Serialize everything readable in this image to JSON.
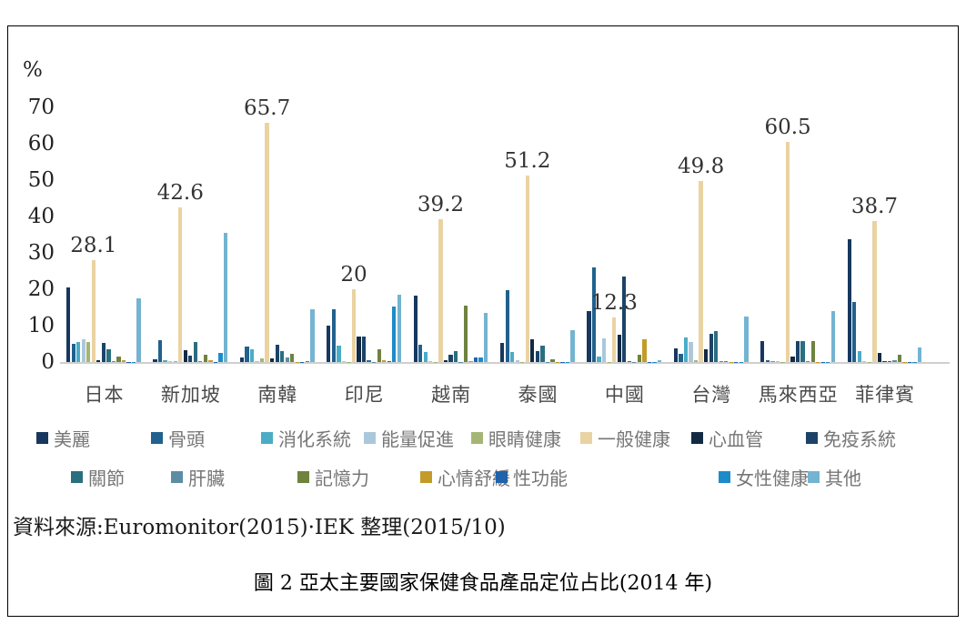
{
  "figure": {
    "source_note": "資料來源:Euromonitor(2015)·IEK 整理(2015/10)",
    "caption": "圖 2 亞太主要國家保健食品產品定位占比(2014 年)"
  },
  "chart_data": {
    "type": "bar",
    "title": "",
    "unit_label": "%",
    "ylabel": "%",
    "xlabel": "",
    "ylim": [
      0,
      70
    ],
    "y_ticks": [
      0,
      10,
      20,
      30,
      40,
      50,
      60,
      70
    ],
    "grid": false,
    "legend_position": "bottom",
    "categories": [
      "日本",
      "新加坡",
      "南韓",
      "印尼",
      "越南",
      "泰國",
      "中國",
      "台灣",
      "馬來西亞",
      "菲律賓"
    ],
    "series": [
      {
        "name": "美麗",
        "color": "#17375E",
        "values": [
          20.5,
          0.8,
          1.2,
          10.0,
          18.3,
          5.2,
          14.0,
          3.8,
          5.8,
          33.8
        ]
      },
      {
        "name": "骨頭",
        "color": "#21618E",
        "values": [
          5.0,
          6.0,
          4.3,
          14.5,
          4.7,
          19.8,
          26.0,
          2.2,
          0.4,
          16.5
        ]
      },
      {
        "name": "消化系統",
        "color": "#4BACC6",
        "values": [
          5.5,
          0.4,
          3.4,
          4.5,
          2.8,
          2.7,
          1.5,
          6.8,
          0.3,
          3.0
        ]
      },
      {
        "name": "能量促進",
        "color": "#ABC8DB",
        "values": [
          6.2,
          0.2,
          0.3,
          0.3,
          0.2,
          0.4,
          6.4,
          5.5,
          0.2,
          0.2
        ]
      },
      {
        "name": "眼睛健康",
        "color": "#A5B575",
        "values": [
          5.6,
          0.3,
          0.9,
          0.1,
          0.1,
          0.1,
          0.1,
          0.4,
          0.1,
          0.1
        ]
      },
      {
        "name": "一般健康",
        "color": "#EAD3A2",
        "values": [
          28.1,
          42.6,
          65.7,
          20,
          39.2,
          51.2,
          12.3,
          49.8,
          60.5,
          38.7
        ]
      },
      {
        "name": "心血管",
        "color": "#122A42",
        "values": [
          0.4,
          3.2,
          1.1,
          7.0,
          0.6,
          6.2,
          7.4,
          3.5,
          1.6,
          2.4
        ]
      },
      {
        "name": "免疫系統",
        "color": "#1C4367",
        "values": [
          5.2,
          1.8,
          4.8,
          7.0,
          1.9,
          3.0,
          23.5,
          7.7,
          5.8,
          0.3
        ]
      },
      {
        "name": "關節",
        "color": "#2A6F80",
        "values": [
          3.6,
          5.6,
          3.0,
          0.4,
          3.1,
          4.4,
          0.2,
          8.5,
          5.8,
          0.2
        ]
      },
      {
        "name": "肝臟",
        "color": "#5D8DA5",
        "values": [
          0.2,
          0.3,
          1.2,
          0.1,
          0.1,
          0.1,
          0.1,
          0.3,
          0.2,
          0.4
        ]
      },
      {
        "name": "記憶力",
        "color": "#6F8240",
        "values": [
          1.6,
          2.0,
          2.3,
          3.6,
          15.5,
          0.8,
          2.0,
          0.2,
          5.8,
          2.0
        ]
      },
      {
        "name": "心情舒緩",
        "color": "#C39B28",
        "values": [
          0.6,
          0.4,
          0.1,
          0.4,
          0.3,
          0.1,
          6.2,
          0.1,
          0.1,
          0.1
        ]
      },
      {
        "name": "性功能",
        "color": "#2063AC",
        "values": [
          0.1,
          0.1,
          0.1,
          0.2,
          1.2,
          0.1,
          0.1,
          0.1,
          0.1,
          0.1
        ]
      },
      {
        "name": "女性健康",
        "color": "#1E8BC9",
        "values": [
          0.1,
          2.6,
          0.2,
          15.3,
          1.2,
          0.1,
          0.1,
          0.1,
          0.1,
          0.1
        ]
      },
      {
        "name": "其他",
        "color": "#74B4D1",
        "values": [
          17.5,
          35.5,
          14.5,
          18.6,
          13.6,
          8.8,
          0.5,
          12.5,
          14.0,
          4.1
        ]
      }
    ],
    "data_label_series": "一般健康",
    "data_labels": [
      "28.1",
      "42.6",
      "65.7",
      "20",
      "39.2",
      "51.2",
      "12.3",
      "49.8",
      "60.5",
      "38.7"
    ]
  }
}
